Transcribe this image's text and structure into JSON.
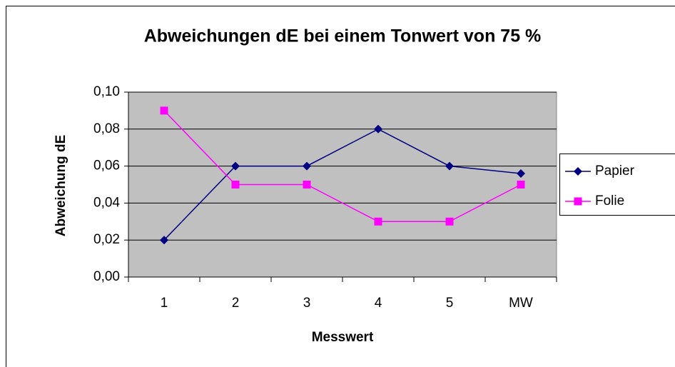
{
  "chart_data": {
    "type": "line",
    "title": "Abweichungen dE bei einem Tonwert von 75 %",
    "x_label": "Messwert",
    "y_label": "Abweichung dE",
    "categories": [
      "1",
      "2",
      "3",
      "4",
      "5",
      "MW"
    ],
    "series": [
      {
        "name": "Papier",
        "color": "#000080",
        "marker": "diamond",
        "values": [
          0.02,
          0.06,
          0.06,
          0.08,
          0.06,
          0.056
        ]
      },
      {
        "name": "Folie",
        "color": "#ff00ff",
        "marker": "square",
        "values": [
          0.09,
          0.05,
          0.05,
          0.03,
          0.03,
          0.05
        ]
      }
    ],
    "ylim": [
      0,
      0.1
    ],
    "yticks": [
      {
        "value": 0,
        "label": "0,00"
      },
      {
        "value": 0.02,
        "label": "0,02"
      },
      {
        "value": 0.04,
        "label": "0,04"
      },
      {
        "value": 0.06,
        "label": "0,06"
      },
      {
        "value": 0.08,
        "label": "0,08"
      },
      {
        "value": 0.1,
        "label": "0,10"
      }
    ],
    "grid": true,
    "legend": "right"
  }
}
